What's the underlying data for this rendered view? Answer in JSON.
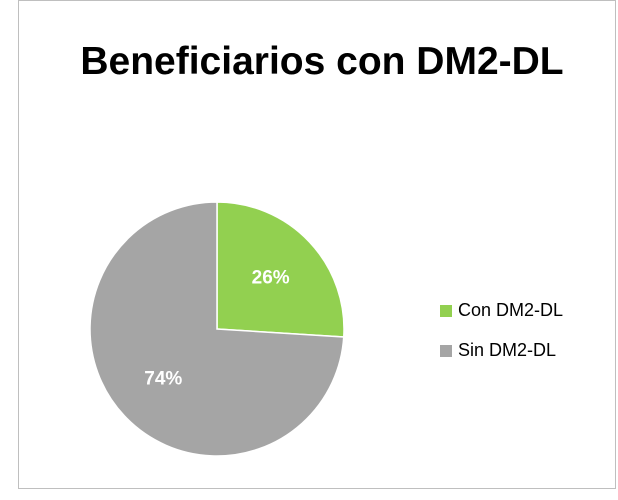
{
  "chart_data": {
    "type": "pie",
    "title": "Beneficiarios con DM2-DL",
    "categories": [
      "Con DM2-DL",
      "Sin DM2-DL"
    ],
    "values": [
      26,
      74
    ],
    "value_labels": [
      "26%",
      "74%"
    ],
    "colors": [
      "#92d050",
      "#a5a5a5"
    ],
    "legend": "right"
  }
}
